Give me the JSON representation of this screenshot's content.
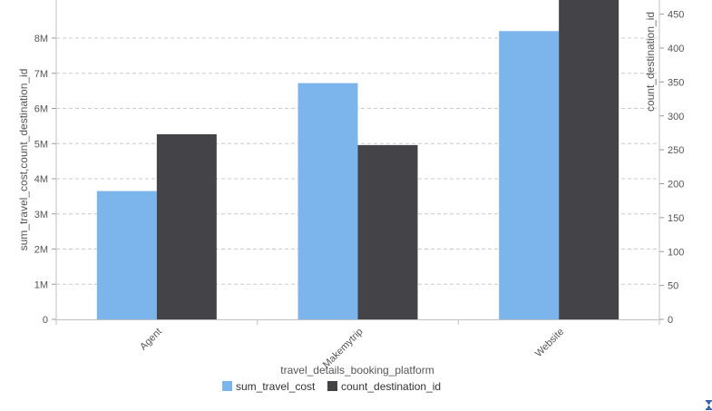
{
  "chart_data": {
    "type": "bar",
    "categories": [
      "Agent",
      "Makemytrip",
      "Website"
    ],
    "series": [
      {
        "name": "sum_travel_cost",
        "axis": "left",
        "color": "#7cb5ec",
        "values": [
          3650000,
          6720000,
          8200000
        ]
      },
      {
        "name": "count_destination_id",
        "axis": "right",
        "color": "#434348",
        "values": [
          273,
          257,
          474
        ]
      }
    ],
    "xlabel": "travel_details_booking_platform",
    "ylabel": "sum_travel_cost,count_destination_id",
    "y2label": "count_destination_id",
    "ylim": [
      0,
      9000000
    ],
    "y2lim": [
      0,
      475
    ],
    "yticks": [
      {
        "value": 0,
        "label": "0"
      },
      {
        "value": 1000000,
        "label": "1M"
      },
      {
        "value": 2000000,
        "label": "2M"
      },
      {
        "value": 3000000,
        "label": "3M"
      },
      {
        "value": 4000000,
        "label": "4M"
      },
      {
        "value": 5000000,
        "label": "5M"
      },
      {
        "value": 6000000,
        "label": "6M"
      },
      {
        "value": 7000000,
        "label": "7M"
      },
      {
        "value": 8000000,
        "label": "8M"
      }
    ],
    "y2ticks": [
      {
        "value": 0,
        "label": "0"
      },
      {
        "value": 50,
        "label": "50"
      },
      {
        "value": 100,
        "label": "100"
      },
      {
        "value": 150,
        "label": "150"
      },
      {
        "value": 200,
        "label": "200"
      },
      {
        "value": 250,
        "label": "250"
      },
      {
        "value": 300,
        "label": "300"
      },
      {
        "value": 350,
        "label": "350"
      },
      {
        "value": 400,
        "label": "400"
      },
      {
        "value": 450,
        "label": "450"
      }
    ],
    "grid": true,
    "legend_position": "bottom-center",
    "x_tick_rotation": "-45"
  },
  "icons": {
    "corner": "hourglass-icon"
  }
}
